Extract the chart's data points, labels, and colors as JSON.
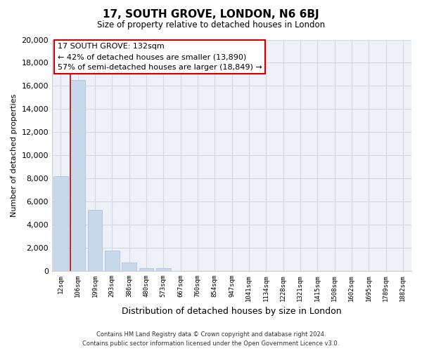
{
  "title": "17, SOUTH GROVE, LONDON, N6 6BJ",
  "subtitle": "Size of property relative to detached houses in London",
  "xlabel": "Distribution of detached houses by size in London",
  "ylabel": "Number of detached properties",
  "bar_labels": [
    "12sqm",
    "106sqm",
    "199sqm",
    "293sqm",
    "386sqm",
    "480sqm",
    "573sqm",
    "667sqm",
    "760sqm",
    "854sqm",
    "947sqm",
    "1041sqm",
    "1134sqm",
    "1228sqm",
    "1321sqm",
    "1415sqm",
    "1508sqm",
    "1602sqm",
    "1695sqm",
    "1789sqm",
    "1882sqm"
  ],
  "bar_heights": [
    8200,
    16500,
    5300,
    1750,
    750,
    275,
    225,
    0,
    0,
    0,
    0,
    0,
    0,
    0,
    0,
    0,
    0,
    0,
    0,
    0,
    0
  ],
  "bar_color": "#c8d9ec",
  "bar_edge_color": "#adc4df",
  "grid_color": "#d0d8e4",
  "marker_color": "#cc0000",
  "annotation_title": "17 SOUTH GROVE: 132sqm",
  "annotation_line1": "← 42% of detached houses are smaller (13,890)",
  "annotation_line2": "57% of semi-detached houses are larger (18,849) →",
  "annotation_box_facecolor": "#ffffff",
  "annotation_box_edgecolor": "#cc0000",
  "ylim": [
    0,
    20000
  ],
  "yticks": [
    0,
    2000,
    4000,
    6000,
    8000,
    10000,
    12000,
    14000,
    16000,
    18000,
    20000
  ],
  "footer_line1": "Contains HM Land Registry data © Crown copyright and database right 2024.",
  "footer_line2": "Contains public sector information licensed under the Open Government Licence v3.0.",
  "bg_color": "#ffffff",
  "plot_bg_color": "#eef2f8"
}
